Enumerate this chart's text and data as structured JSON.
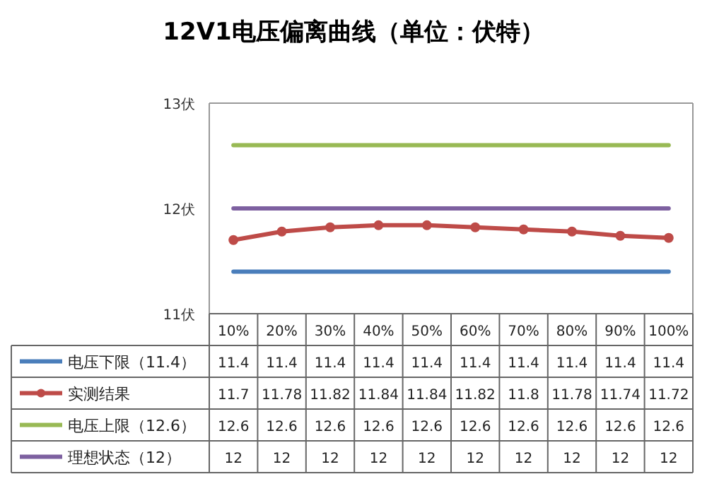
{
  "chart_data": {
    "type": "line",
    "title": "12V1电压偏离曲线（单位：伏特）",
    "categories": [
      "10%",
      "20%",
      "30%",
      "40%",
      "50%",
      "60%",
      "70%",
      "80%",
      "90%",
      "100%"
    ],
    "series": [
      {
        "name": "电压下限（11.4）",
        "color": "#4a7ebb",
        "marker": "none",
        "values": [
          11.4,
          11.4,
          11.4,
          11.4,
          11.4,
          11.4,
          11.4,
          11.4,
          11.4,
          11.4
        ]
      },
      {
        "name": "实测结果",
        "color": "#be4b48",
        "marker": "circle",
        "values": [
          11.7,
          11.78,
          11.82,
          11.84,
          11.84,
          11.82,
          11.8,
          11.78,
          11.74,
          11.72
        ]
      },
      {
        "name": "电压上限（12.6）",
        "color": "#98b954",
        "marker": "none",
        "values": [
          12.6,
          12.6,
          12.6,
          12.6,
          12.6,
          12.6,
          12.6,
          12.6,
          12.6,
          12.6
        ]
      },
      {
        "name": "理想状态（12）",
        "color": "#7d60a0",
        "marker": "none",
        "values": [
          12,
          12,
          12,
          12,
          12,
          12,
          12,
          12,
          12,
          12
        ]
      }
    ],
    "ylim": [
      11,
      13
    ],
    "yticks": [
      {
        "value": 11,
        "label": "11伏"
      },
      {
        "value": 12,
        "label": "12伏"
      },
      {
        "value": 13,
        "label": "13伏"
      }
    ],
    "grid": false,
    "legend": "bottom",
    "data_labels": true,
    "line_style": "solid"
  }
}
